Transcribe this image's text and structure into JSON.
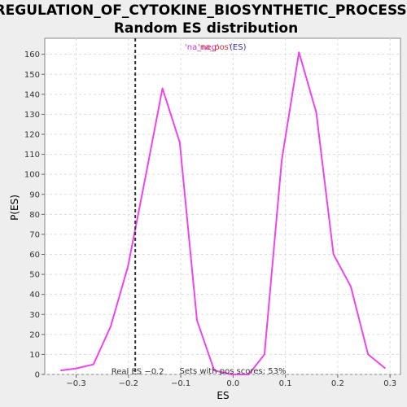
{
  "chart_data": {
    "type": "line",
    "title_line1": "REGULATION_OF_CYTOKINE_BIOSYNTHETIC_PROCESS:",
    "title_line2": "Random ES distribution",
    "xlabel": "ES",
    "ylabel": "P(ES)",
    "xlim": [
      -0.36,
      0.32
    ],
    "ylim": [
      0,
      168
    ],
    "xticks": [
      -0.3,
      -0.2,
      -0.1,
      0.0,
      0.1,
      0.2,
      0.3
    ],
    "xtick_labels": [
      "−0.3",
      "−0.2",
      "−0.1",
      "0.0",
      "0.1",
      "0.2",
      "0.3"
    ],
    "yticks": [
      0,
      10,
      20,
      30,
      40,
      50,
      60,
      70,
      80,
      90,
      100,
      110,
      120,
      130,
      140,
      150,
      160
    ],
    "grid": true,
    "legend_items": [
      {
        "text": "'na_neg'",
        "color": "#cc33cc"
      },
      {
        "text": "'na_pos'",
        "color": "#d23030"
      },
      {
        "text": "(ES)",
        "color": "#3333aa"
      }
    ],
    "series": [
      {
        "color": "#ee44ee",
        "x": [
          -0.33,
          -0.3,
          -0.267,
          -0.234,
          -0.201,
          -0.168,
          -0.135,
          -0.102,
          -0.069,
          -0.036,
          -0.003,
          0.03,
          0.06,
          0.093,
          0.126,
          0.159,
          0.192,
          0.225,
          0.258,
          0.291
        ],
        "y": [
          2,
          3,
          5,
          24,
          54,
          98,
          143,
          116,
          27,
          2,
          0,
          0,
          10,
          107,
          161,
          131,
          60,
          44,
          10,
          3
        ]
      }
    ],
    "real_es": {
      "value": -0.187,
      "label": "Real ES −0.2"
    },
    "annotation": "Sets with pos scores: 53%"
  }
}
